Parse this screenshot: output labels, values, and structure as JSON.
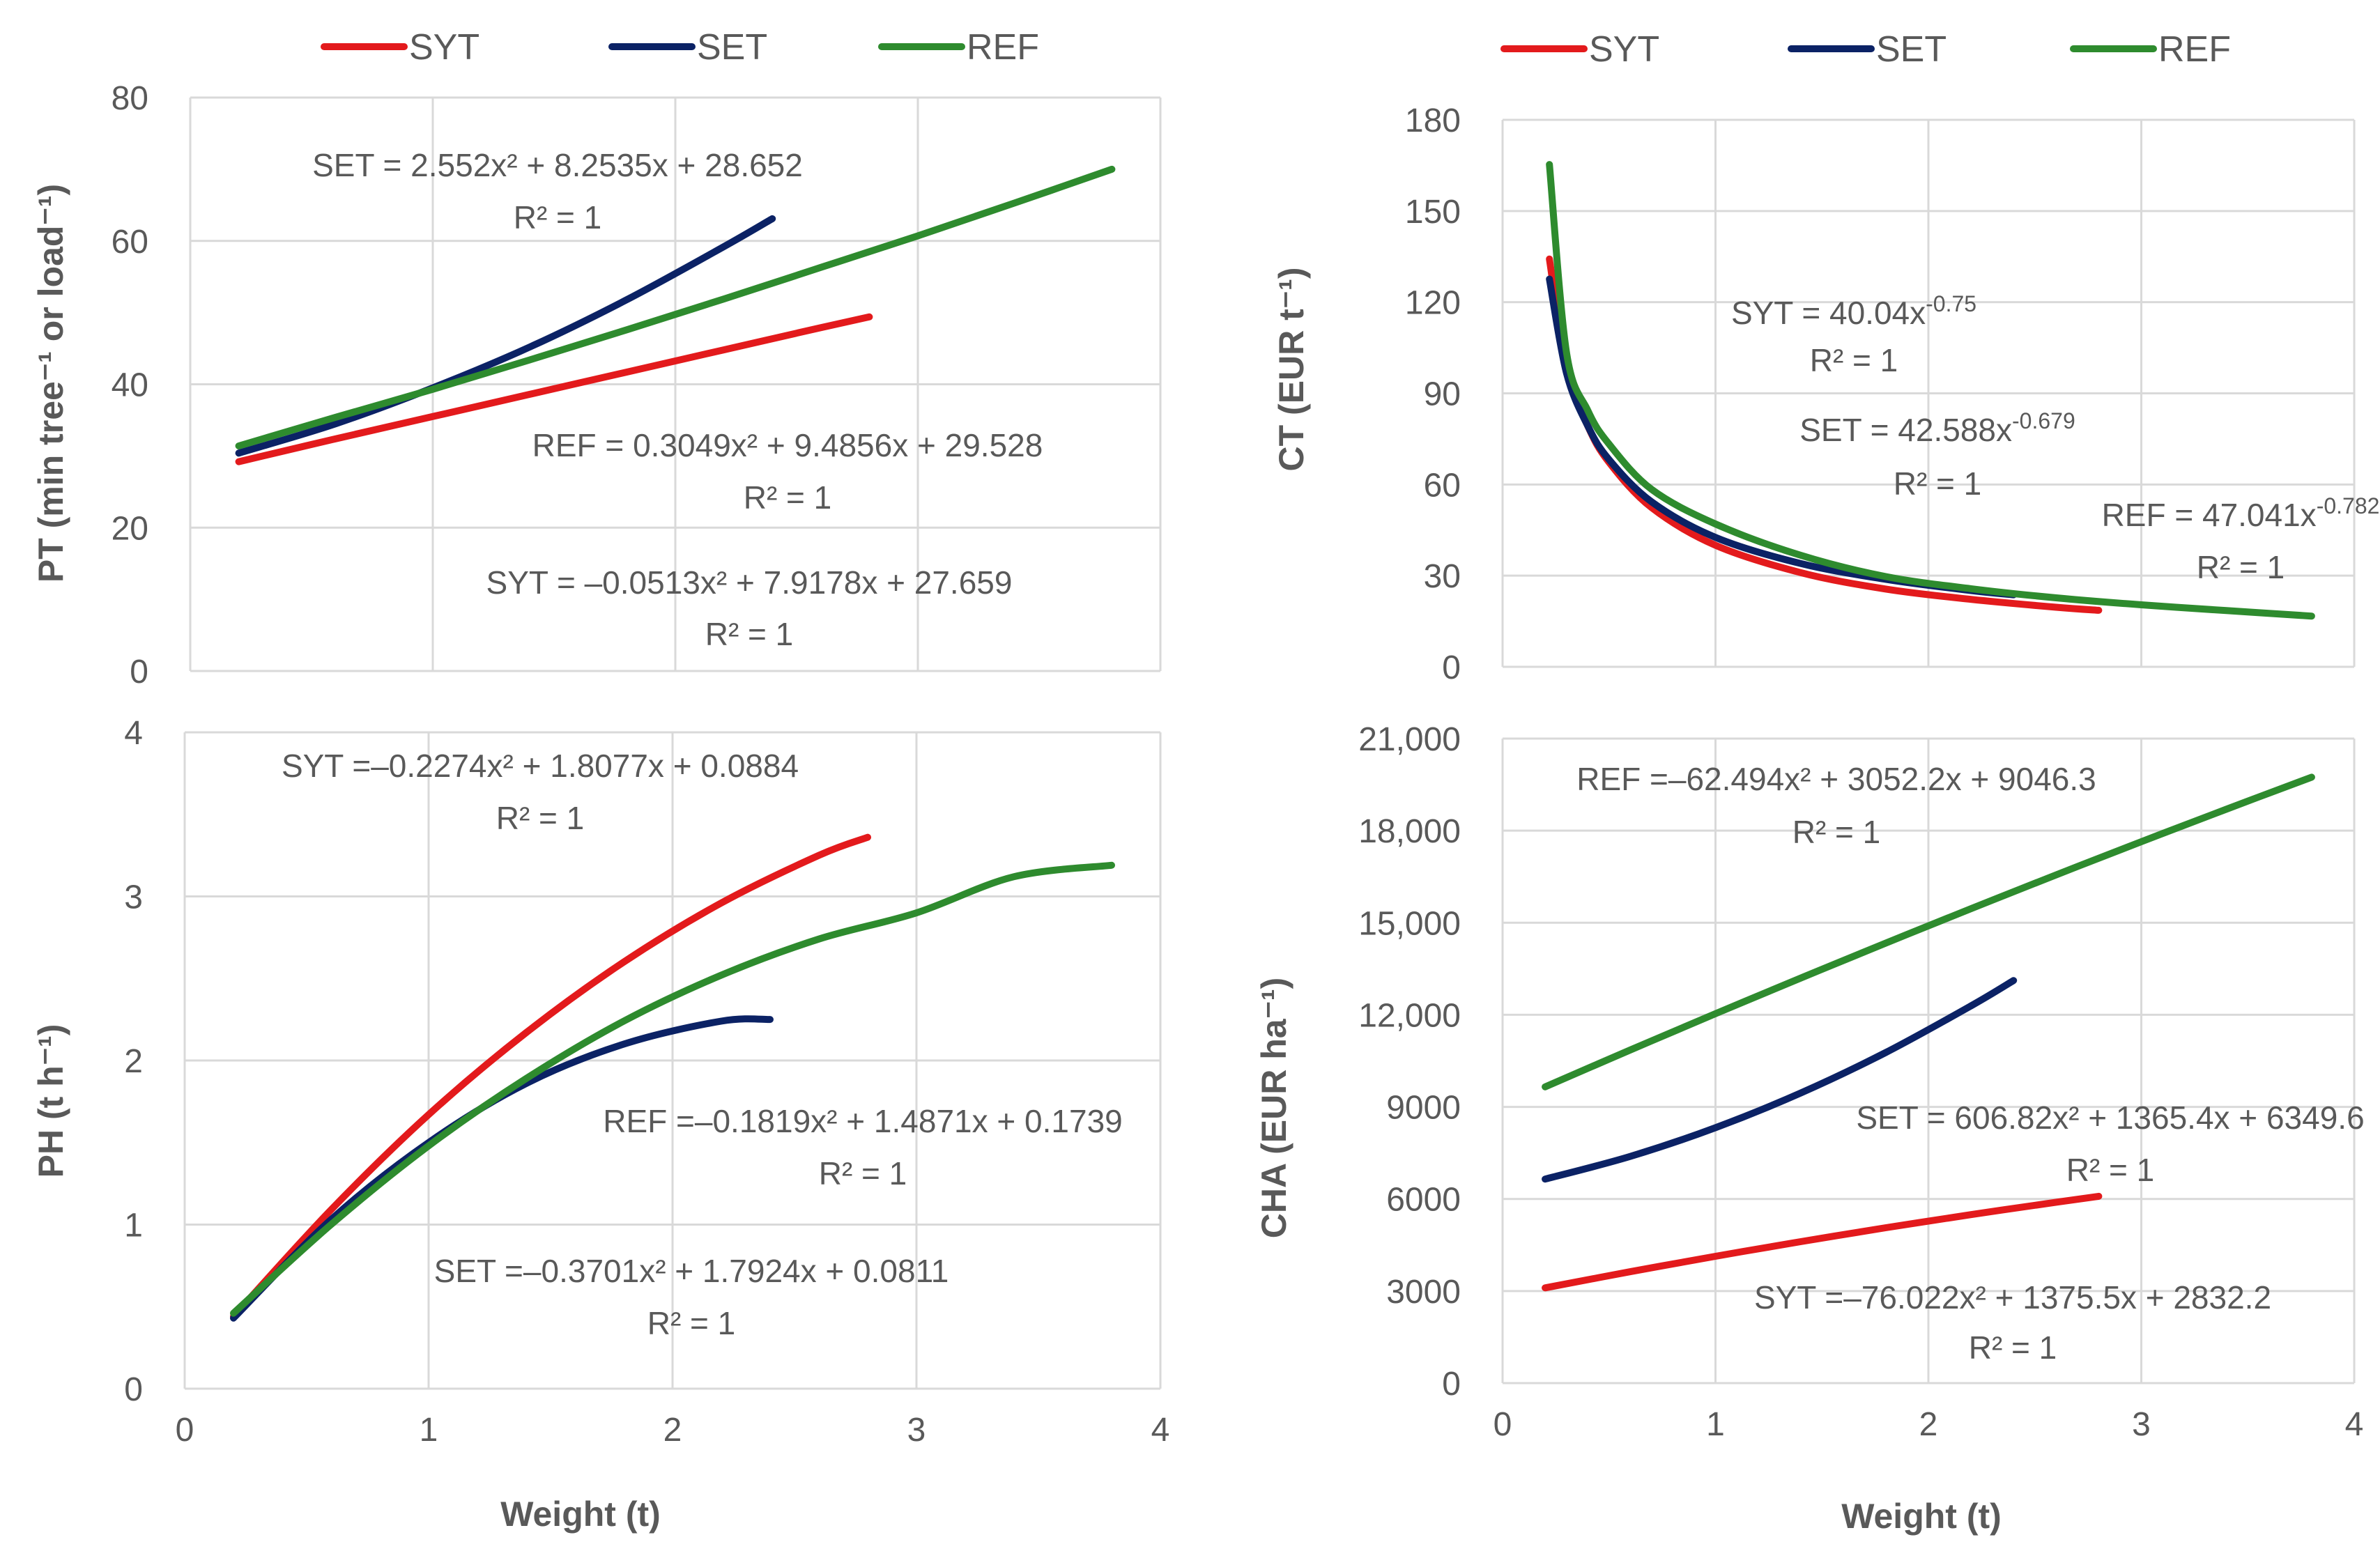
{
  "colors": {
    "SYT": "#e31a1c",
    "SET": "#0b2265",
    "REF": "#2e8b2e"
  },
  "chart_data": [
    {
      "type": "line",
      "xlabel": "",
      "ylabel": "PT (min tree⁻¹ or load⁻¹)",
      "xlim": [
        0,
        4
      ],
      "ylim": [
        0,
        80
      ],
      "x_ticks": [
        "0",
        "1",
        "2",
        "3",
        "4"
      ],
      "y_ticks": [
        "0",
        "20",
        "40",
        "60",
        "80"
      ],
      "legend": "top",
      "grid": "both",
      "series": [
        {
          "name": "SYT",
          "x": [
            0.2,
            0.6,
            1.0,
            1.4,
            1.8,
            2.2,
            2.6,
            2.8
          ],
          "y": [
            29.2,
            32.4,
            35.5,
            38.6,
            41.7,
            44.8,
            47.9,
            49.4
          ]
        },
        {
          "name": "SET",
          "x": [
            0.2,
            0.6,
            1.0,
            1.4,
            1.8,
            2.2,
            2.4
          ],
          "y": [
            30.4,
            34.5,
            39.5,
            45.2,
            51.8,
            59.2,
            63.1
          ]
        },
        {
          "name": "REF",
          "x": [
            0.2,
            0.6,
            1.0,
            1.4,
            1.8,
            2.2,
            2.6,
            3.0,
            3.4,
            3.8
          ],
          "y": [
            31.4,
            35.4,
            39.3,
            43.4,
            47.6,
            51.9,
            56.3,
            60.7,
            65.3,
            70.0
          ]
        }
      ],
      "equations": [
        {
          "text": "SET = 2.552x² + 8.2535x + 28.652",
          "r2": "R² = 1"
        },
        {
          "text": "REF = 0.3049x² + 9.4856x + 29.528",
          "r2": "R² = 1"
        },
        {
          "text": "SYT = –0.0513x² + 7.9178x + 27.659",
          "r2": "R² = 1"
        }
      ]
    },
    {
      "type": "line",
      "xlabel": "",
      "ylabel": "CT (EUR t⁻¹)",
      "xlim": [
        0,
        4
      ],
      "ylim": [
        0,
        180
      ],
      "x_ticks": [
        "0",
        "1",
        "2",
        "3",
        "4"
      ],
      "y_ticks": [
        "0",
        "30",
        "60",
        "90",
        "120",
        "150",
        "180"
      ],
      "legend": "top",
      "grid": "both",
      "series": [
        {
          "name": "SYT",
          "x": [
            0.22,
            0.3,
            0.4,
            0.5,
            0.7,
            1.0,
            1.4,
            1.8,
            2.2,
            2.6,
            2.8
          ],
          "y": [
            134.2,
            98.4,
            79.3,
            67.3,
            52.4,
            40.0,
            31.0,
            25.6,
            22.2,
            19.6,
            18.6
          ]
        },
        {
          "name": "SET",
          "x": [
            0.22,
            0.3,
            0.4,
            0.5,
            0.7,
            1.0,
            1.4,
            1.8,
            2.2,
            2.4
          ],
          "y": [
            127.6,
            96.7,
            79.3,
            68.2,
            54.3,
            42.6,
            34.0,
            28.8,
            25.1,
            23.7
          ]
        },
        {
          "name": "REF",
          "x": [
            0.22,
            0.3,
            0.4,
            0.5,
            0.7,
            1.0,
            1.4,
            1.8,
            2.2,
            2.6,
            3.0,
            3.4,
            3.8
          ],
          "y": [
            165.3,
            103.5,
            84.4,
            73.3,
            58.4,
            47.0,
            36.7,
            29.7,
            25.7,
            22.7,
            20.4,
            18.5,
            16.7
          ]
        }
      ],
      "equations": [
        {
          "text": "SYT = 40.04x",
          "exp": "-0.75",
          "r2": "R² = 1"
        },
        {
          "text": "SET = 42.588x",
          "exp": "-0.679",
          "r2": "R² = 1"
        },
        {
          "text": "REF = 47.041x",
          "exp": "-0.782",
          "r2": "R² = 1"
        }
      ]
    },
    {
      "type": "line",
      "xlabel": "Weight (t)",
      "ylabel": "PH (t h⁻¹)",
      "xlim": [
        0,
        4
      ],
      "ylim": [
        0,
        4
      ],
      "x_ticks": [
        "0",
        "1",
        "2",
        "3",
        "4"
      ],
      "y_ticks": [
        "0",
        "1",
        "2",
        "3",
        "4"
      ],
      "grid": "both",
      "series": [
        {
          "name": "SYT",
          "x": [
            0.2,
            0.6,
            1.0,
            1.4,
            1.8,
            2.2,
            2.6,
            2.8
          ],
          "y": [
            0.44,
            1.09,
            1.67,
            2.17,
            2.6,
            2.96,
            3.25,
            3.36
          ]
        },
        {
          "name": "SET",
          "x": [
            0.2,
            0.6,
            1.0,
            1.4,
            1.8,
            2.2,
            2.4
          ],
          "y": [
            0.43,
            1.03,
            1.5,
            1.86,
            2.1,
            2.24,
            2.25
          ]
        },
        {
          "name": "REF",
          "x": [
            0.2,
            0.6,
            1.0,
            1.4,
            1.8,
            2.2,
            2.6,
            3.0,
            3.4,
            3.8
          ],
          "y": [
            0.46,
            1.0,
            1.48,
            1.89,
            2.24,
            2.52,
            2.74,
            2.9,
            3.12,
            3.19
          ]
        }
      ],
      "equations": [
        {
          "text": "SYT =–0.2274x² + 1.8077x + 0.0884",
          "r2": "R² = 1"
        },
        {
          "text": "REF =–0.1819x² + 1.4871x + 0.1739",
          "r2": "R² = 1"
        },
        {
          "text": "SET =–0.3701x² + 1.7924x + 0.0811",
          "r2": "R² = 1"
        }
      ]
    },
    {
      "type": "line",
      "xlabel": "Weight (t)",
      "ylabel": "CHA (EUR ha⁻¹)",
      "xlim": [
        0,
        4
      ],
      "ylim": [
        0,
        21000
      ],
      "x_ticks": [
        "0",
        "1",
        "2",
        "3",
        "4"
      ],
      "y_ticks": [
        "0",
        "3000",
        "6000",
        "9000",
        "12,000",
        "15,000",
        "18,000",
        "21,000"
      ],
      "grid": "both",
      "series": [
        {
          "name": "SYT",
          "x": [
            0.2,
            0.6,
            1.0,
            1.4,
            1.8,
            2.2,
            2.6,
            2.8
          ],
          "y": [
            3104,
            3630,
            4132,
            4609,
            5062,
            5490,
            5894,
            6087
          ]
        },
        {
          "name": "SET",
          "x": [
            0.2,
            0.6,
            1.0,
            1.4,
            1.8,
            2.2,
            2.4
          ],
          "y": [
            6647,
            7387,
            8322,
            9451,
            10773,
            12291,
            13117
          ]
        },
        {
          "name": "REF",
          "x": [
            0.2,
            0.6,
            1.0,
            1.4,
            1.8,
            2.2,
            2.6,
            3.0,
            3.4,
            3.8
          ],
          "y": [
            9654,
            10855,
            12036,
            13196,
            14337,
            15458,
            16559,
            17640,
            18701,
            19742
          ]
        }
      ],
      "equations": [
        {
          "text": "REF =–62.494x² +  3052.2x +  9046.3",
          "r2": "R² = 1"
        },
        {
          "text": "SET = 606.82x² +  1365.4x +  6349.6",
          "r2": "R² = 1"
        },
        {
          "text": "SYT =–76.022x² +  1375.5x + 2832.2",
          "r2": "R² = 1"
        }
      ]
    }
  ]
}
